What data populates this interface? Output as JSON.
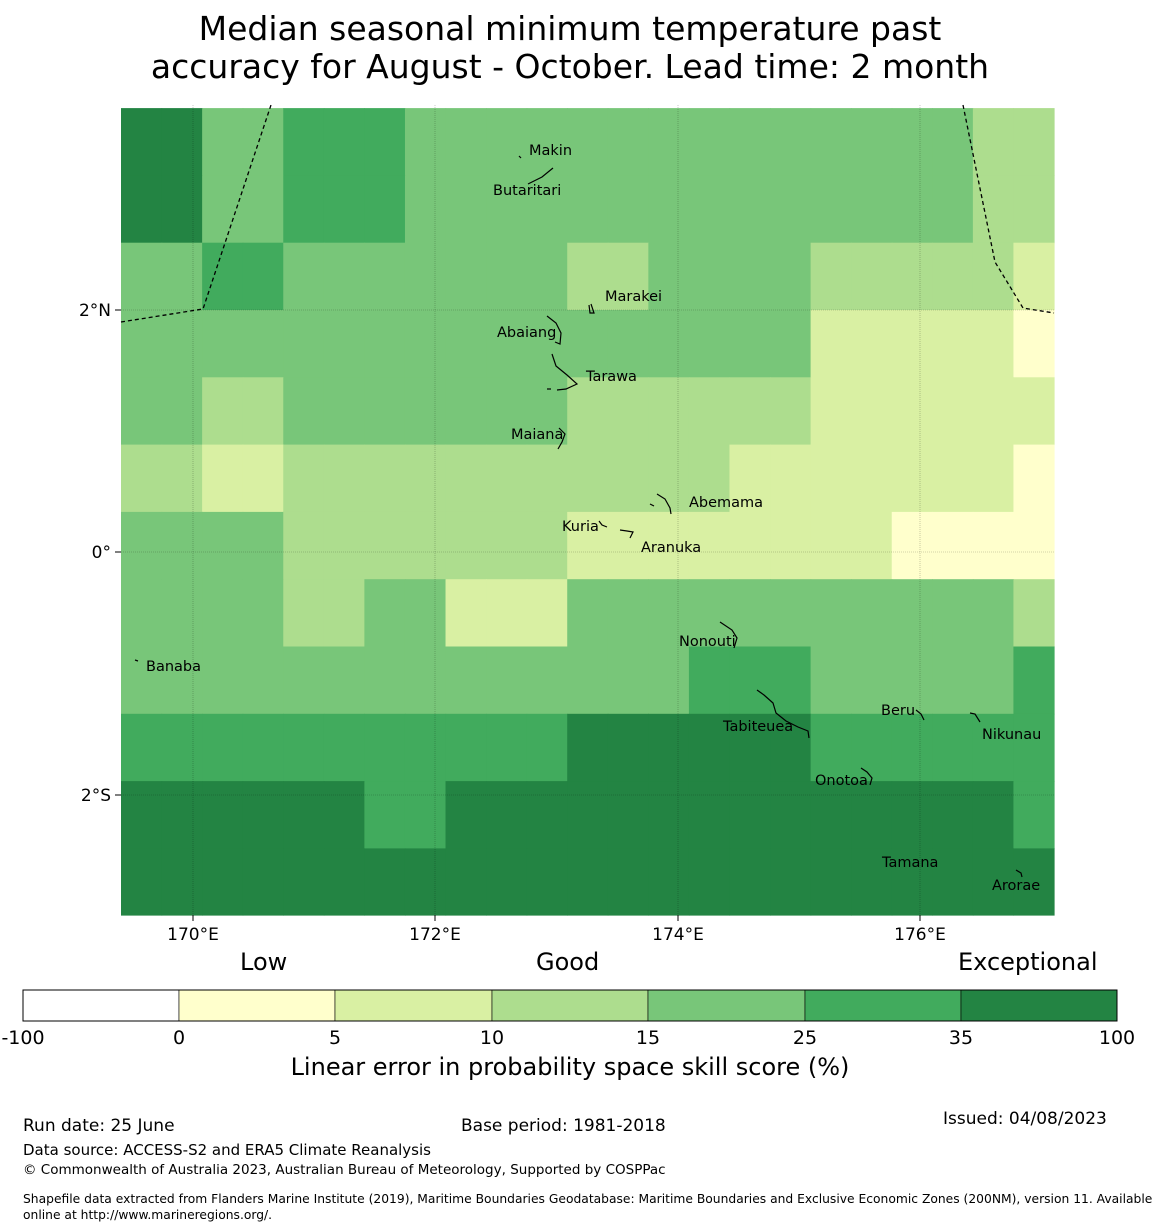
{
  "title_line1": "Median seasonal minimum temperature past",
  "title_line2": "accuracy for August - October. Lead time: 2 month",
  "map": {
    "lon_ticks": [
      "170°E",
      "172°E",
      "174°E",
      "176°E"
    ],
    "lat_ticks": [
      "2°N",
      "0°",
      "2°S"
    ],
    "islands": [
      "Makin",
      "Butaritari",
      "Marakei",
      "Abaiang",
      "Tarawa",
      "Maiana",
      "Abemama",
      "Kuria",
      "Aranuka",
      "Nonouti",
      "Banaba",
      "Beru",
      "Tabiteuea",
      "Nikunau",
      "Onotoa",
      "Tamana",
      "Arorae"
    ],
    "legend_colors": [
      "#ffffff",
      "#ffffcc",
      "#d9f0a3",
      "#addd8e",
      "#78c679",
      "#41ab5d",
      "#238443"
    ],
    "grid": [
      [
        6,
        6,
        4,
        4,
        5,
        5,
        5,
        4,
        4,
        4,
        4,
        4,
        4,
        4,
        4,
        4,
        4,
        4,
        4,
        4,
        4,
        3,
        3
      ],
      [
        6,
        6,
        4,
        4,
        5,
        5,
        5,
        4,
        4,
        4,
        4,
        4,
        4,
        4,
        4,
        4,
        4,
        4,
        4,
        4,
        4,
        3,
        3
      ],
      [
        4,
        4,
        5,
        5,
        4,
        4,
        4,
        4,
        4,
        4,
        4,
        3,
        3,
        4,
        4,
        4,
        4,
        3,
        3,
        3,
        3,
        3,
        2
      ],
      [
        4,
        4,
        4,
        4,
        4,
        4,
        4,
        4,
        4,
        4,
        4,
        4,
        4,
        4,
        4,
        4,
        4,
        2,
        2,
        2,
        2,
        2,
        1
      ],
      [
        4,
        4,
        3,
        3,
        4,
        4,
        4,
        4,
        4,
        4,
        4,
        3,
        3,
        3,
        3,
        3,
        3,
        2,
        2,
        2,
        2,
        2,
        2
      ],
      [
        3,
        3,
        2,
        2,
        3,
        3,
        3,
        3,
        3,
        3,
        3,
        3,
        3,
        3,
        3,
        2,
        2,
        2,
        2,
        2,
        2,
        2,
        1
      ],
      [
        4,
        4,
        4,
        4,
        3,
        3,
        3,
        3,
        3,
        3,
        3,
        2,
        2,
        2,
        2,
        2,
        2,
        2,
        2,
        1,
        1,
        1,
        1
      ],
      [
        4,
        4,
        4,
        4,
        3,
        3,
        4,
        4,
        2,
        2,
        2,
        4,
        4,
        4,
        4,
        4,
        4,
        4,
        4,
        4,
        4,
        4,
        3
      ],
      [
        4,
        4,
        4,
        4,
        4,
        4,
        4,
        4,
        4,
        4,
        4,
        4,
        4,
        4,
        5,
        5,
        5,
        4,
        4,
        4,
        4,
        4,
        5
      ],
      [
        5,
        5,
        5,
        5,
        5,
        5,
        5,
        5,
        5,
        5,
        5,
        6,
        6,
        6,
        6,
        6,
        6,
        5,
        5,
        5,
        5,
        5,
        5
      ],
      [
        6,
        6,
        6,
        6,
        6,
        6,
        5,
        5,
        6,
        6,
        6,
        6,
        6,
        6,
        6,
        6,
        6,
        6,
        6,
        6,
        6,
        6,
        5
      ],
      [
        6,
        6,
        6,
        6,
        6,
        6,
        6,
        6,
        6,
        6,
        6,
        6,
        6,
        6,
        6,
        6,
        6,
        6,
        6,
        6,
        6,
        6,
        6
      ]
    ]
  },
  "legend": {
    "categories": [
      "Low",
      "Good",
      "Exceptional"
    ],
    "ticks": [
      "-100",
      "0",
      "5",
      "10",
      "15",
      "25",
      "35",
      "100"
    ],
    "label": "Linear error in probability space skill score (%)"
  },
  "footer": {
    "run_date": "Run date: 25 June",
    "base_period": "Base period: 1981-2018",
    "issued": "Issued: 04/08/2023",
    "data_source": "Data source: ACCESS-S2 and ERA5 Climate Reanalysis",
    "copyright": "© Commonwealth of Australia 2023, Australian Bureau of Meteorology, Supported by COSPPac",
    "shapefile_line1": "Shapefile data extracted from Flanders Marine Institute (2019), Maritime Boundaries Geodatabase: Maritime Boundaries and Exclusive Economic Zones (200NM), version 11. Available",
    "shapefile_line2": "online at http://www.marineregions.org/."
  }
}
